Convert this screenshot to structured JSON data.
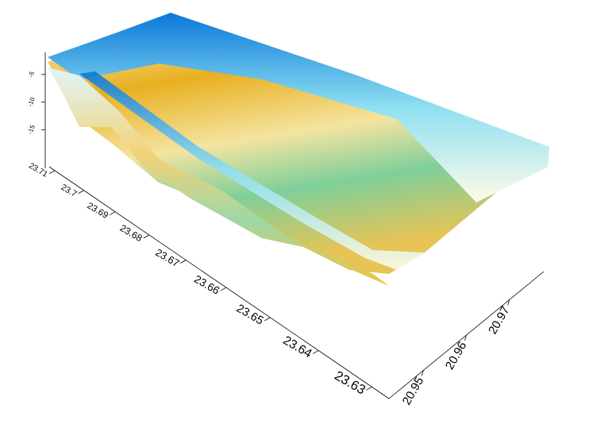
{
  "chart_data": {
    "type": "surface3d",
    "xlim": [
      23.627,
      23.712
    ],
    "xticks": [
      23.63,
      23.64,
      23.65,
      23.66,
      23.67,
      23.68,
      23.69,
      23.7,
      23.71
    ],
    "ylim": [
      20.942,
      20.978
    ],
    "yticks": [
      20.95,
      20.96,
      20.97
    ],
    "zlim": [
      -22,
      -1
    ],
    "zticks": [
      -5,
      -10,
      -15
    ]
  }
}
